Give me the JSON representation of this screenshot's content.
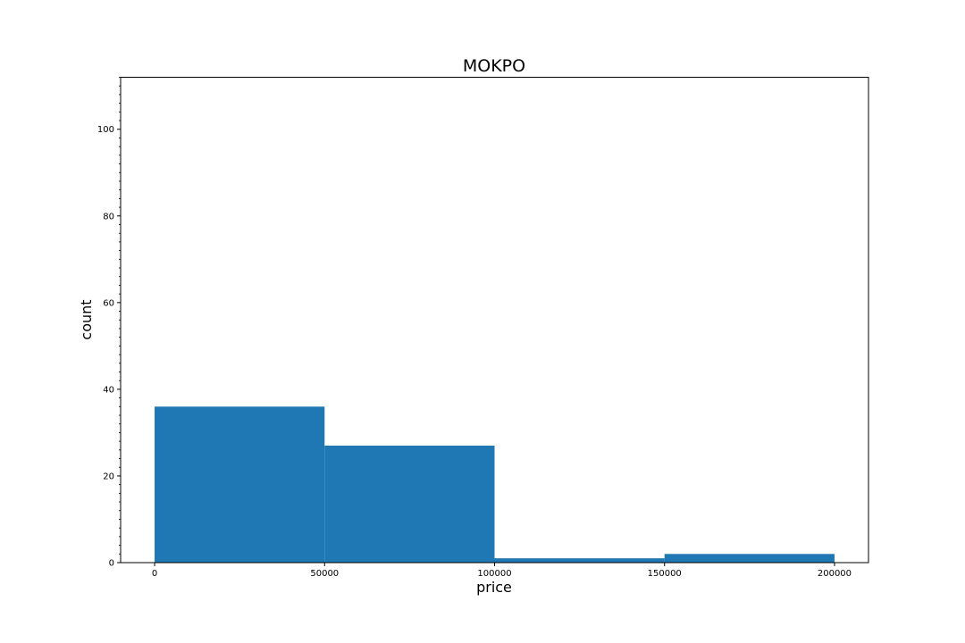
{
  "chart_data": {
    "type": "bar",
    "histogram": true,
    "title": "MOKPO",
    "xlabel": "price",
    "ylabel": "count",
    "bins": [
      {
        "start": 0,
        "end": 50000,
        "count": 36
      },
      {
        "start": 50000,
        "end": 100000,
        "count": 27
      },
      {
        "start": 100000,
        "end": 150000,
        "count": 1
      },
      {
        "start": 150000,
        "end": 200000,
        "count": 2
      }
    ],
    "xlim": [
      -10000,
      210000
    ],
    "ylim": [
      0,
      112
    ],
    "xticks": [
      0,
      50000,
      100000,
      150000,
      200000
    ],
    "yticks": [
      0,
      20,
      40,
      60,
      80,
      100
    ],
    "y_minor_ticks": true,
    "grid": false,
    "legend": false,
    "bar_color": "#1f77b4"
  }
}
